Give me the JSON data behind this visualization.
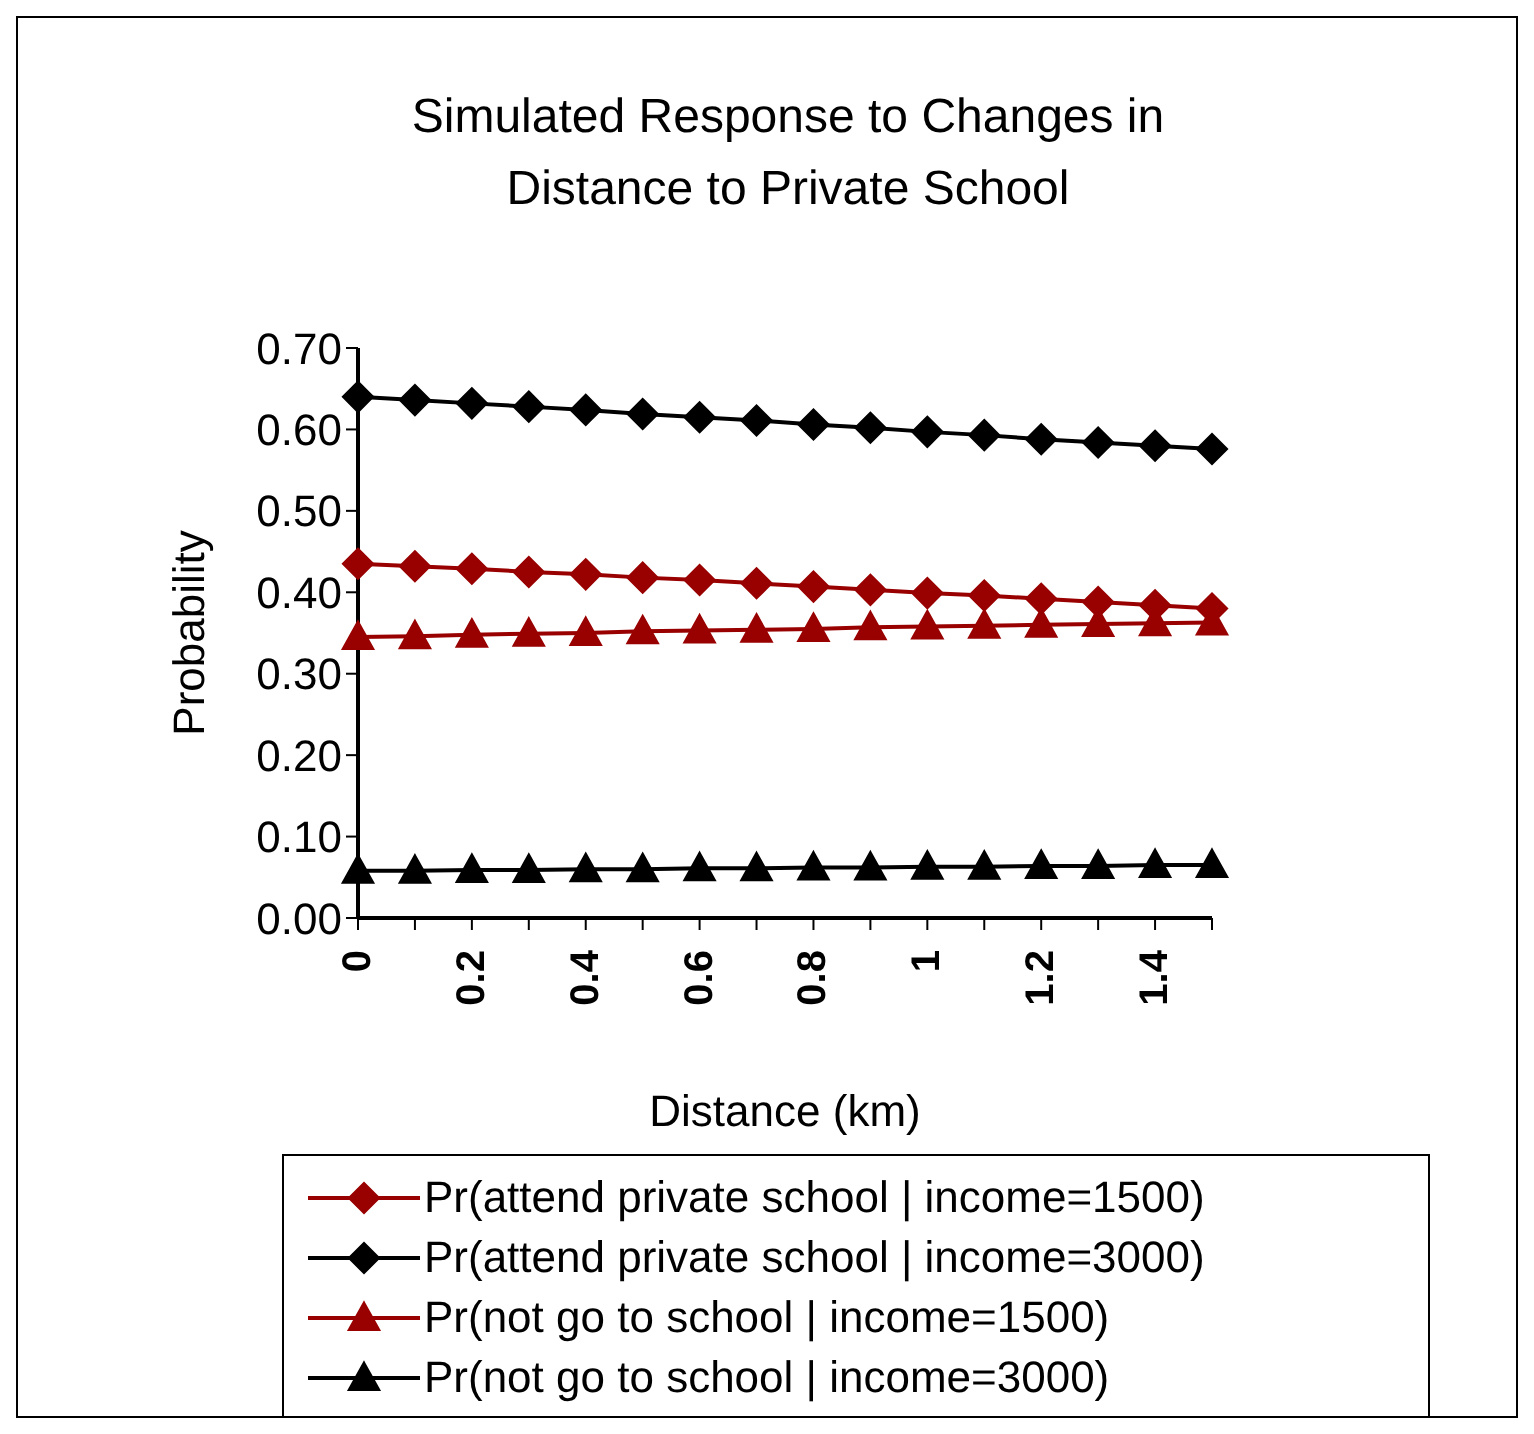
{
  "chart_data": {
    "type": "line",
    "title": "Simulated Response to Changes in Distance to Private School",
    "xlabel": "Distance (km)",
    "ylabel": "Probability",
    "categories": [
      "0",
      null,
      "0.2",
      null,
      "0.4",
      null,
      "0.6",
      null,
      "0.8",
      null,
      "1",
      null,
      "1.2",
      null,
      "1.4",
      null
    ],
    "series": [
      {
        "name": "Pr(attend private school | income=1500)",
        "color": "#990000",
        "marker": "diamond",
        "values": [
          0.435,
          0.432,
          0.429,
          0.425,
          0.422,
          0.418,
          0.415,
          0.411,
          0.407,
          0.403,
          0.399,
          0.396,
          0.392,
          0.388,
          0.384,
          0.38
        ]
      },
      {
        "name": "Pr(attend private school | income=3000)",
        "color": "#000000",
        "marker": "diamond",
        "values": [
          0.64,
          0.636,
          0.632,
          0.628,
          0.624,
          0.619,
          0.615,
          0.611,
          0.606,
          0.602,
          0.597,
          0.593,
          0.588,
          0.584,
          0.58,
          0.576
        ]
      },
      {
        "name": "Pr(not go to school | income=1500)",
        "color": "#990000",
        "marker": "triangle",
        "values": [
          0.345,
          0.346,
          0.348,
          0.349,
          0.35,
          0.352,
          0.353,
          0.354,
          0.355,
          0.357,
          0.358,
          0.359,
          0.36,
          0.361,
          0.362,
          0.363
        ]
      },
      {
        "name": "Pr(not go to school | income=3000)",
        "color": "#000000",
        "marker": "triangle",
        "values": [
          0.058,
          0.058,
          0.059,
          0.059,
          0.06,
          0.06,
          0.061,
          0.061,
          0.062,
          0.062,
          0.063,
          0.063,
          0.064,
          0.064,
          0.065,
          0.065
        ]
      }
    ],
    "ylim": [
      0,
      0.7
    ],
    "yticks": [
      {
        "value": 0,
        "label": "0.00"
      },
      {
        "value": 0.1,
        "label": "0.10"
      },
      {
        "value": 0.2,
        "label": "0.20"
      },
      {
        "value": 0.3,
        "label": "0.30"
      },
      {
        "value": 0.4,
        "label": "0.40"
      },
      {
        "value": 0.5,
        "label": "0.50"
      },
      {
        "value": 0.6,
        "label": "0.60"
      },
      {
        "value": 0.7,
        "label": "0.70"
      }
    ],
    "grid": false,
    "legend": "bottom"
  }
}
